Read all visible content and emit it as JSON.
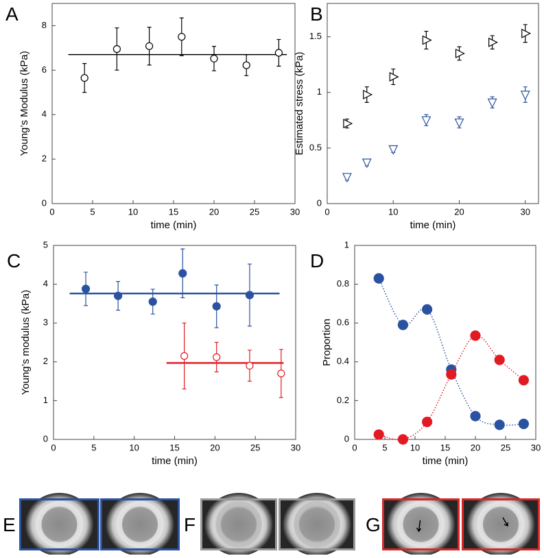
{
  "chart_data": [
    {
      "type": "scatter",
      "panel": "A",
      "xlabel": "time (min)",
      "ylabel": "Young’s Modulus (kPa)",
      "xlim": [
        0,
        30
      ],
      "ylim": [
        0,
        9
      ],
      "xticks": [
        0,
        5,
        10,
        15,
        20,
        25,
        30
      ],
      "yticks": [
        0,
        2,
        4,
        6,
        8
      ],
      "series": [
        {
          "marker": "circle-open",
          "color": "#000000",
          "x": [
            4,
            8,
            12,
            16,
            20,
            24,
            28
          ],
          "values": [
            5.65,
            6.95,
            7.08,
            7.5,
            6.52,
            6.22,
            6.78
          ],
          "errors": [
            0.65,
            0.95,
            0.85,
            0.85,
            0.55,
            0.47,
            0.6
          ]
        }
      ],
      "reference_lines": [
        {
          "y": 6.7,
          "x": [
            2,
            29
          ],
          "color": "#000000"
        }
      ]
    },
    {
      "type": "scatter",
      "panel": "B",
      "xlabel": "time (min)",
      "ylabel": "Estimated stress (kPa)",
      "xlim": [
        0,
        32
      ],
      "ylim": [
        0,
        1.8
      ],
      "xticks": [
        0,
        10,
        20,
        30
      ],
      "yticks": [
        0,
        0.5,
        1,
        1.5
      ],
      "series": [
        {
          "marker": "triangle-right",
          "color": "#000000",
          "x": [
            3,
            6,
            10,
            15,
            20,
            25,
            30
          ],
          "values": [
            0.72,
            0.98,
            1.14,
            1.47,
            1.35,
            1.45,
            1.53
          ],
          "errors": [
            0.04,
            0.07,
            0.07,
            0.08,
            0.06,
            0.06,
            0.08
          ]
        },
        {
          "marker": "triangle-down",
          "color": "#2a52a0",
          "x": [
            3,
            6,
            10,
            15,
            20,
            25,
            30
          ],
          "values": [
            0.24,
            0.37,
            0.49,
            0.75,
            0.73,
            0.91,
            0.98
          ],
          "errors": [
            0.03,
            0.03,
            0.03,
            0.05,
            0.05,
            0.05,
            0.07
          ]
        }
      ]
    },
    {
      "type": "scatter",
      "panel": "C",
      "xlabel": "time (min)",
      "ylabel": "Young’s modulus (kPa)",
      "xlim": [
        0,
        30
      ],
      "ylim": [
        0,
        5
      ],
      "xticks": [
        0,
        5,
        10,
        15,
        20,
        25,
        30
      ],
      "yticks": [
        0,
        1,
        2,
        3,
        4,
        5
      ],
      "series": [
        {
          "marker": "circle-filled",
          "color": "#2a52a0",
          "x": [
            4,
            8,
            12.3,
            16,
            20.2,
            24.3
          ],
          "values": [
            3.88,
            3.7,
            3.55,
            4.28,
            3.43,
            3.72
          ],
          "errors": [
            0.43,
            0.37,
            0.32,
            0.63,
            0.55,
            0.8
          ]
        },
        {
          "marker": "circle-open",
          "color": "#e21b23",
          "x": [
            16.2,
            20.2,
            24.3,
            28.2
          ],
          "values": [
            2.15,
            2.12,
            1.9,
            1.7
          ],
          "errors": [
            0.85,
            0.38,
            0.4,
            0.62
          ]
        }
      ],
      "reference_lines": [
        {
          "y": 3.76,
          "x": [
            2,
            28
          ],
          "color": "#2a52a0"
        },
        {
          "y": 1.97,
          "x": [
            14,
            28.5
          ],
          "color": "#e21b23"
        }
      ]
    },
    {
      "type": "scatter",
      "panel": "D",
      "xlabel": "time (min)",
      "ylabel": "Proportion",
      "xlim": [
        0,
        30
      ],
      "ylim": [
        0,
        1
      ],
      "xticks": [
        0,
        5,
        10,
        15,
        20,
        25,
        30
      ],
      "yticks": [
        0,
        0.2,
        0.4,
        0.6,
        0.8,
        1
      ],
      "series": [
        {
          "marker": "circle-filled",
          "color": "#2a52a0",
          "line": "dotted",
          "x": [
            4,
            8,
            12,
            16,
            20,
            24,
            28
          ],
          "values": [
            0.83,
            0.59,
            0.67,
            0.36,
            0.12,
            0.075,
            0.08
          ]
        },
        {
          "marker": "circle-filled",
          "color": "#e21b23",
          "line": "dotted",
          "x": [
            4,
            8,
            12,
            16,
            20,
            24,
            28
          ],
          "values": [
            0.025,
            0,
            0.09,
            0.335,
            0.535,
            0.41,
            0.305
          ]
        }
      ]
    }
  ],
  "image_panels": [
    {
      "label": "E",
      "color": "#2a52a0"
    },
    {
      "label": "F",
      "color": "#999999"
    },
    {
      "label": "G",
      "color": "#d62828"
    }
  ]
}
